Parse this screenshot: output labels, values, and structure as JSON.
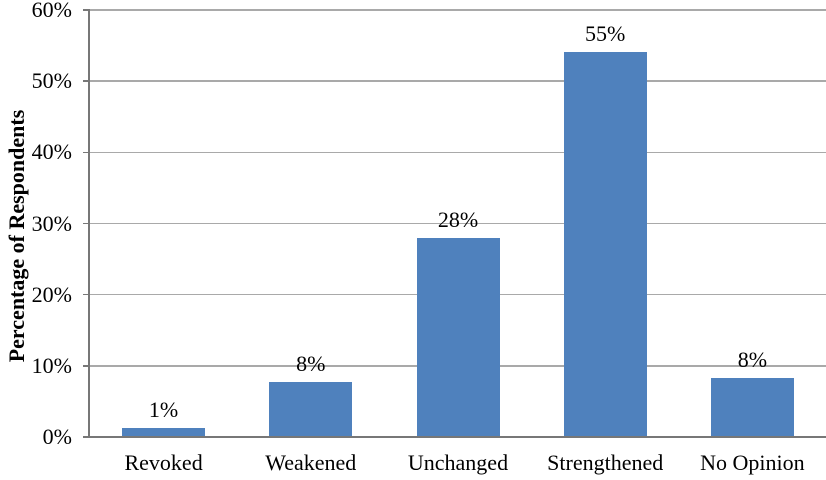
{
  "chart_data": {
    "type": "bar",
    "title": "",
    "categories": [
      "Revoked",
      "Weakened",
      "Unchanged",
      "Strengthened",
      "No Opinion"
    ],
    "values": [
      1,
      8,
      28,
      55,
      8
    ],
    "data_labels": [
      "1%",
      "8%",
      "28%",
      "55%",
      "8%"
    ],
    "bar_heights_pct_estimated": [
      1.3,
      7.7,
      28.0,
      54.1,
      8.3
    ],
    "ylabel": "Percentage of Respondents",
    "xlabel": "",
    "ylim": [
      0,
      60
    ],
    "y_tick_step": 10,
    "y_tick_labels": [
      "0%",
      "10%",
      "20%",
      "30%",
      "40%",
      "50%",
      "60%"
    ],
    "grid": true,
    "legend": false,
    "bar_color": "#4F81BD",
    "gridline_color": "#A9A9A9",
    "axis_color": "#777777",
    "text_color": "#000000",
    "background_color": "#FFFFFF"
  }
}
